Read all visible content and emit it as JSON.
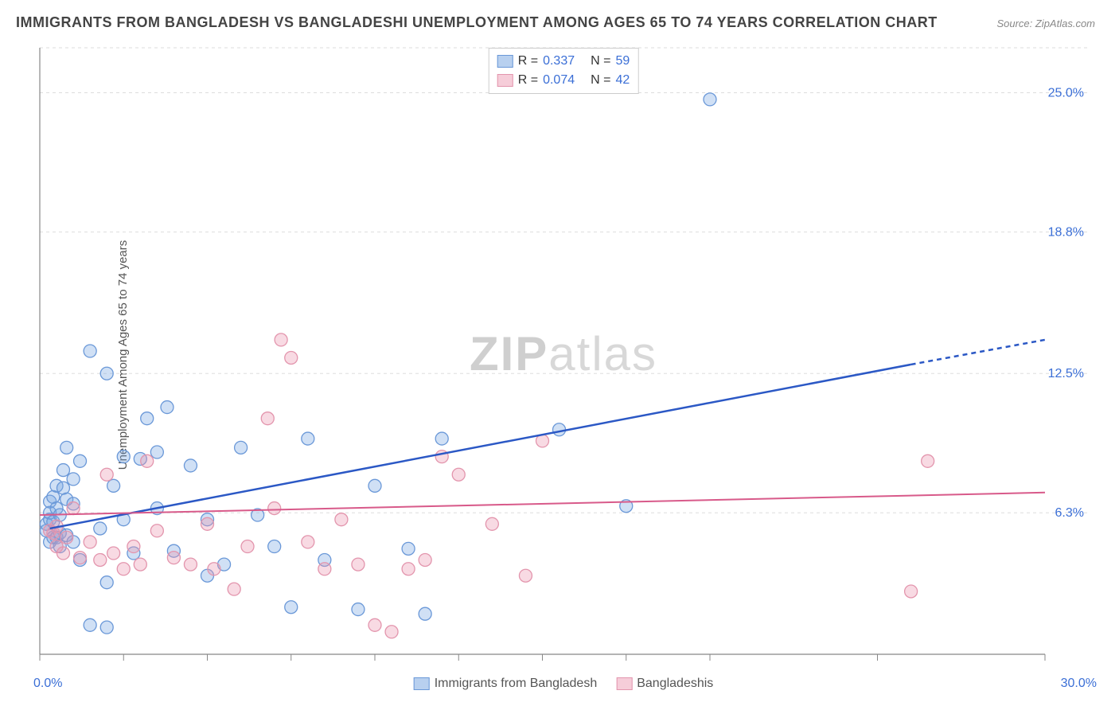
{
  "title": "IMMIGRANTS FROM BANGLADESH VS BANGLADESHI UNEMPLOYMENT AMONG AGES 65 TO 74 YEARS CORRELATION CHART",
  "source": "Source: ZipAtlas.com",
  "ylabel": "Unemployment Among Ages 65 to 74 years",
  "watermark": "ZIPatlas",
  "chart": {
    "type": "scatter",
    "xlim": [
      0,
      30
    ],
    "ylim": [
      0,
      27
    ],
    "xticks": [
      0,
      2.5,
      5,
      7.5,
      10,
      12.5,
      15,
      17.5,
      20,
      25,
      30
    ],
    "ytick_labels": [
      {
        "v": 6.3,
        "label": "6.3%"
      },
      {
        "v": 12.5,
        "label": "12.5%"
      },
      {
        "v": 18.8,
        "label": "18.8%"
      },
      {
        "v": 25.0,
        "label": "25.0%"
      }
    ],
    "ygrid": [
      6.3,
      12.5,
      18.8,
      25.0,
      27
    ],
    "x_axis_min_label": "0.0%",
    "x_axis_max_label": "30.0%",
    "background_color": "#ffffff",
    "grid_color": "#dddddd",
    "axis_color": "#888888",
    "marker_radius": 8,
    "marker_stroke_width": 1.3,
    "series": [
      {
        "name": "Immigrants from Bangladesh",
        "color_fill": "rgba(120,165,225,0.35)",
        "color_stroke": "#6a98d8",
        "swatch_fill": "#b8d0ef",
        "swatch_stroke": "#6a98d8",
        "R": "0.337",
        "N": "59",
        "trend": {
          "x1": 0.3,
          "y1": 5.6,
          "x2": 26,
          "y2": 12.9,
          "dash_from_x": 26,
          "dash_to_x": 30,
          "dash_to_y": 14.0,
          "color": "#2b58c5",
          "width": 2.5
        },
        "points": [
          [
            0.2,
            5.5
          ],
          [
            0.2,
            5.8
          ],
          [
            0.3,
            5.0
          ],
          [
            0.3,
            6.0
          ],
          [
            0.3,
            6.3
          ],
          [
            0.3,
            6.8
          ],
          [
            0.4,
            5.2
          ],
          [
            0.4,
            5.9
          ],
          [
            0.4,
            7.0
          ],
          [
            0.5,
            5.2
          ],
          [
            0.5,
            6.5
          ],
          [
            0.5,
            7.5
          ],
          [
            0.6,
            4.8
          ],
          [
            0.6,
            5.4
          ],
          [
            0.6,
            6.2
          ],
          [
            0.7,
            7.4
          ],
          [
            0.7,
            8.2
          ],
          [
            0.8,
            5.3
          ],
          [
            0.8,
            6.9
          ],
          [
            0.8,
            9.2
          ],
          [
            1.0,
            5.0
          ],
          [
            1.0,
            6.7
          ],
          [
            1.0,
            7.8
          ],
          [
            1.2,
            4.2
          ],
          [
            1.2,
            8.6
          ],
          [
            1.5,
            1.3
          ],
          [
            1.5,
            13.5
          ],
          [
            1.8,
            5.6
          ],
          [
            2.0,
            1.2
          ],
          [
            2.0,
            3.2
          ],
          [
            2.0,
            12.5
          ],
          [
            2.2,
            7.5
          ],
          [
            2.5,
            6.0
          ],
          [
            2.5,
            8.8
          ],
          [
            2.8,
            4.5
          ],
          [
            3.0,
            8.7
          ],
          [
            3.2,
            10.5
          ],
          [
            3.5,
            6.5
          ],
          [
            3.5,
            9.0
          ],
          [
            3.8,
            11.0
          ],
          [
            4.0,
            4.6
          ],
          [
            4.5,
            8.4
          ],
          [
            5.0,
            3.5
          ],
          [
            5.0,
            6.0
          ],
          [
            5.5,
            4.0
          ],
          [
            6.0,
            9.2
          ],
          [
            6.5,
            6.2
          ],
          [
            7.0,
            4.8
          ],
          [
            7.5,
            2.1
          ],
          [
            8.0,
            9.6
          ],
          [
            8.5,
            4.2
          ],
          [
            9.5,
            2.0
          ],
          [
            10.0,
            7.5
          ],
          [
            11.0,
            4.7
          ],
          [
            12.0,
            9.6
          ],
          [
            15.5,
            10.0
          ],
          [
            17.5,
            6.6
          ],
          [
            20.0,
            24.7
          ],
          [
            11.5,
            1.8
          ]
        ]
      },
      {
        "name": "Bangladeshis",
        "color_fill": "rgba(235,150,175,0.35)",
        "color_stroke": "#e395ad",
        "swatch_fill": "#f6cdd9",
        "swatch_stroke": "#e395ad",
        "R": "0.074",
        "N": "42",
        "trend": {
          "x1": 0,
          "y1": 6.2,
          "x2": 30,
          "y2": 7.2,
          "color": "#d85a8a",
          "width": 2
        },
        "points": [
          [
            0.3,
            5.5
          ],
          [
            0.4,
            5.4
          ],
          [
            0.5,
            4.8
          ],
          [
            0.5,
            5.7
          ],
          [
            0.7,
            4.5
          ],
          [
            0.8,
            5.2
          ],
          [
            1.0,
            6.5
          ],
          [
            1.2,
            4.3
          ],
          [
            1.5,
            5.0
          ],
          [
            1.8,
            4.2
          ],
          [
            2.0,
            8.0
          ],
          [
            2.2,
            4.5
          ],
          [
            2.5,
            3.8
          ],
          [
            2.8,
            4.8
          ],
          [
            3.0,
            4.0
          ],
          [
            3.2,
            8.6
          ],
          [
            3.5,
            5.5
          ],
          [
            4.0,
            4.3
          ],
          [
            4.5,
            4.0
          ],
          [
            5.0,
            5.8
          ],
          [
            5.2,
            3.8
          ],
          [
            5.8,
            2.9
          ],
          [
            6.2,
            4.8
          ],
          [
            6.8,
            10.5
          ],
          [
            7.0,
            6.5
          ],
          [
            7.2,
            14.0
          ],
          [
            7.5,
            13.2
          ],
          [
            8.0,
            5.0
          ],
          [
            8.5,
            3.8
          ],
          [
            9.0,
            6.0
          ],
          [
            9.5,
            4.0
          ],
          [
            10.0,
            1.3
          ],
          [
            10.5,
            1.0
          ],
          [
            11.0,
            3.8
          ],
          [
            11.5,
            4.2
          ],
          [
            12.0,
            8.8
          ],
          [
            12.5,
            8.0
          ],
          [
            13.5,
            5.8
          ],
          [
            14.5,
            3.5
          ],
          [
            15.0,
            9.5
          ],
          [
            26.5,
            8.6
          ],
          [
            26.0,
            2.8
          ]
        ]
      }
    ],
    "legend_bottom": [
      {
        "label": "Immigrants from Bangladesh",
        "swatch_fill": "#b8d0ef",
        "swatch_stroke": "#6a98d8"
      },
      {
        "label": "Bangladeshis",
        "swatch_fill": "#f6cdd9",
        "swatch_stroke": "#e395ad"
      }
    ]
  }
}
